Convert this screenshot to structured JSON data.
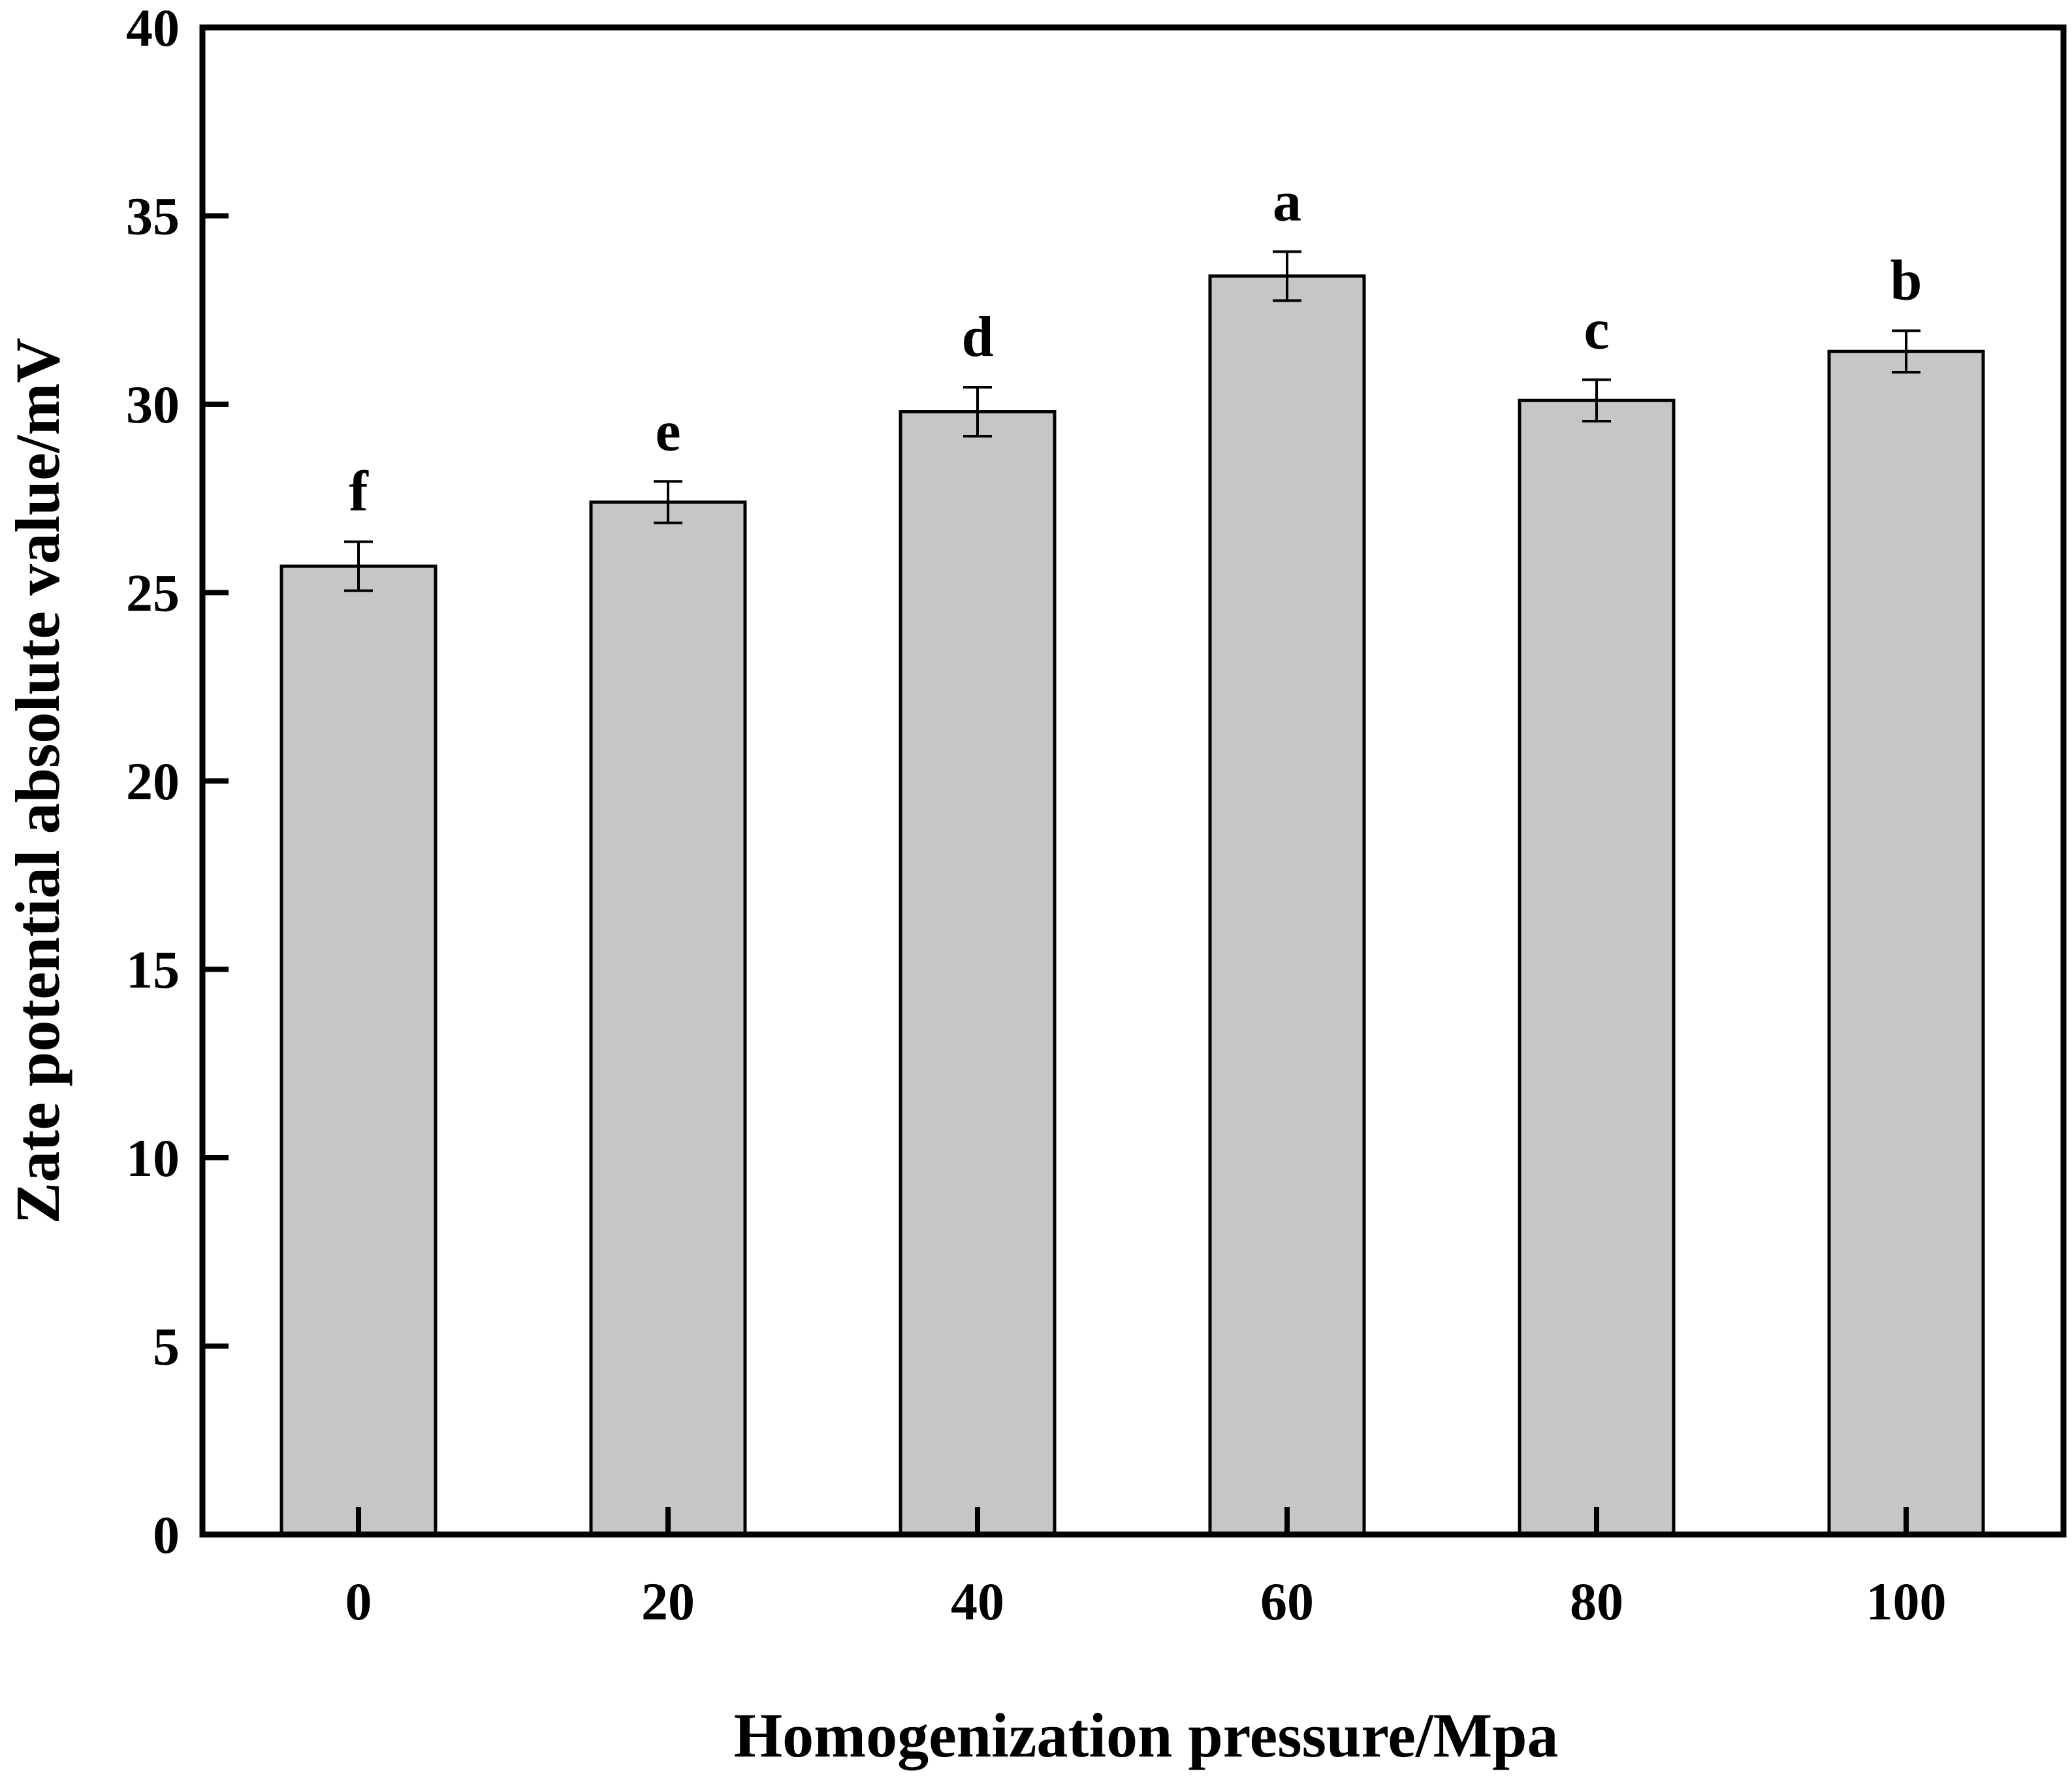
{
  "chart_data": {
    "type": "bar",
    "title": "",
    "xlabel": "Homogenization pressure/Mpa",
    "ylabel": "Zate potential absolute value/mV",
    "categories": [
      "0",
      "20",
      "40",
      "60",
      "80",
      "100"
    ],
    "values": [
      25.7,
      27.4,
      29.8,
      33.4,
      30.1,
      31.4
    ],
    "errors": [
      0.65,
      0.55,
      0.65,
      0.65,
      0.55,
      0.55
    ],
    "significance_labels": [
      "f",
      "e",
      "d",
      "a",
      "c",
      "b"
    ],
    "ylim": [
      0,
      40
    ],
    "yticks": [
      "0",
      "5",
      "10",
      "15",
      "20",
      "25",
      "30",
      "35",
      "40"
    ],
    "grid": false,
    "legend": "none",
    "bar_color": "#c6c6c6",
    "edge_color": "#000000"
  }
}
